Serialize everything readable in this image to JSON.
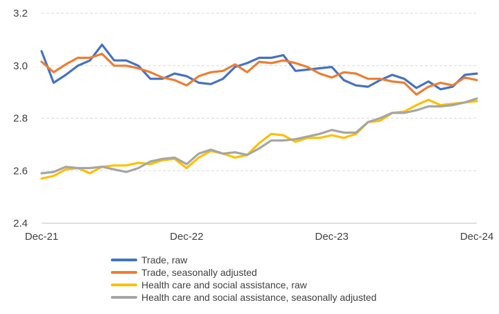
{
  "chart_data": {
    "type": "line",
    "title": "",
    "xlabel": "",
    "ylabel": "",
    "ylim": [
      2.4,
      3.2
    ],
    "yticks": [
      2.4,
      2.6,
      2.8,
      3.0,
      3.2
    ],
    "ytick_labels": [
      "2.4",
      "2.6",
      "2.8",
      "3.0",
      "3.2"
    ],
    "grid": "horizontal dashed",
    "legend_position": "bottom",
    "x": [
      "Dec-21",
      "Jan-22",
      "Feb-22",
      "Mar-22",
      "Apr-22",
      "May-22",
      "Jun-22",
      "Jul-22",
      "Aug-22",
      "Sep-22",
      "Oct-22",
      "Nov-22",
      "Dec-22",
      "Jan-23",
      "Feb-23",
      "Mar-23",
      "Apr-23",
      "May-23",
      "Jun-23",
      "Jul-23",
      "Aug-23",
      "Sep-23",
      "Oct-23",
      "Nov-23",
      "Dec-23",
      "Jan-24",
      "Feb-24",
      "Mar-24",
      "Apr-24",
      "May-24",
      "Jun-24",
      "Jul-24",
      "Aug-24",
      "Sep-24",
      "Oct-24",
      "Nov-24",
      "Dec-24"
    ],
    "xtick_labels": [
      "Dec-21",
      "Dec-22",
      "Dec-23",
      "Dec-24"
    ],
    "xtick_indices": [
      0,
      12,
      24,
      36
    ],
    "series": [
      {
        "name": "Trade, raw",
        "color": "#4472C4",
        "values": [
          3.055,
          2.935,
          2.965,
          3.0,
          3.02,
          3.08,
          3.02,
          3.02,
          3.0,
          2.95,
          2.95,
          2.97,
          2.96,
          2.935,
          2.93,
          2.95,
          2.995,
          3.01,
          3.03,
          3.03,
          3.04,
          2.98,
          2.985,
          2.99,
          2.995,
          2.945,
          2.925,
          2.92,
          2.945,
          2.965,
          2.95,
          2.915,
          2.94,
          2.91,
          2.92,
          2.965,
          2.97
        ]
      },
      {
        "name": "Trade, seasonally adjusted",
        "color": "#ED7D31",
        "values": [
          3.015,
          2.975,
          3.005,
          3.03,
          3.03,
          3.045,
          3.0,
          3.0,
          2.99,
          2.975,
          2.955,
          2.945,
          2.925,
          2.96,
          2.975,
          2.98,
          3.005,
          2.975,
          3.015,
          3.01,
          3.02,
          3.01,
          2.995,
          2.97,
          2.955,
          2.975,
          2.97,
          2.95,
          2.95,
          2.94,
          2.935,
          2.89,
          2.92,
          2.935,
          2.925,
          2.955,
          2.945
        ]
      },
      {
        "name": "Health care and social assistance, raw",
        "color": "#FFC000",
        "values": [
          2.57,
          2.58,
          2.605,
          2.61,
          2.59,
          2.615,
          2.62,
          2.62,
          2.63,
          2.625,
          2.64,
          2.645,
          2.61,
          2.65,
          2.675,
          2.665,
          2.65,
          2.66,
          2.705,
          2.74,
          2.735,
          2.71,
          2.725,
          2.725,
          2.735,
          2.725,
          2.74,
          2.785,
          2.79,
          2.82,
          2.825,
          2.85,
          2.87,
          2.85,
          2.855,
          2.86,
          2.865
        ]
      },
      {
        "name": "Health care and social assistance, seasonally adjusted",
        "color": "#A5A5A5",
        "values": [
          2.59,
          2.595,
          2.615,
          2.61,
          2.61,
          2.615,
          2.605,
          2.595,
          2.61,
          2.635,
          2.645,
          2.65,
          2.625,
          2.665,
          2.68,
          2.665,
          2.67,
          2.66,
          2.685,
          2.715,
          2.715,
          2.72,
          2.73,
          2.74,
          2.755,
          2.745,
          2.745,
          2.785,
          2.8,
          2.82,
          2.82,
          2.83,
          2.845,
          2.845,
          2.85,
          2.86,
          2.875
        ]
      }
    ]
  }
}
